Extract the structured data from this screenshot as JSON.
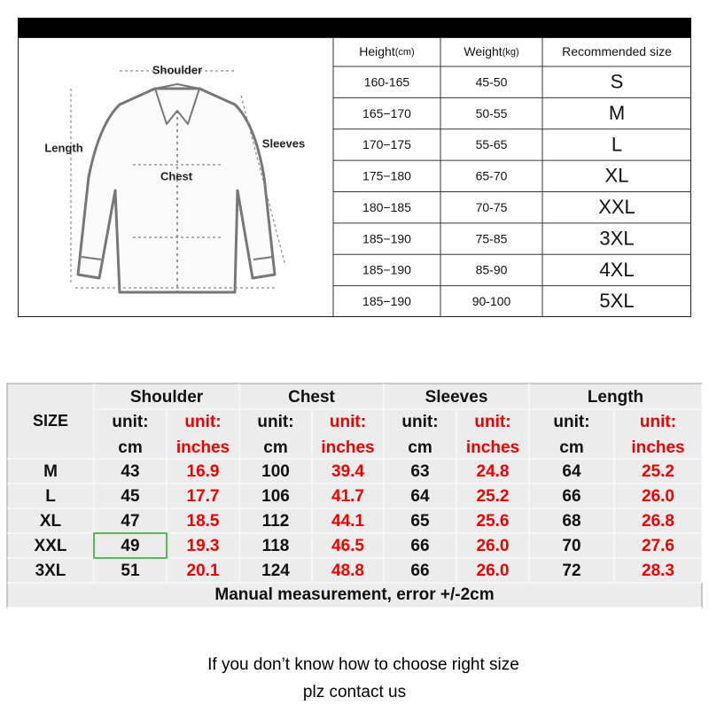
{
  "size_guide": {
    "diagram": {
      "labels": {
        "shoulder": "Shoulder",
        "length": "Length",
        "sleeves": "Sleeves",
        "chest": "Chest"
      }
    },
    "recommend_table": {
      "headers": [
        {
          "text": "Height",
          "unit": "(cm)"
        },
        {
          "text": "Weight",
          "unit": "(kg)"
        },
        {
          "text": "Recommended size"
        }
      ],
      "rows": [
        [
          "160-165",
          "45-50",
          "S"
        ],
        [
          "165−170",
          "50-55",
          "M"
        ],
        [
          "170−175",
          "55-65",
          "L"
        ],
        [
          "175−180",
          "65-70",
          "XL"
        ],
        [
          "180−185",
          "70-75",
          "XXL"
        ],
        [
          "185−190",
          "75-85",
          "3XL"
        ],
        [
          "185−190",
          "85-90",
          "4XL"
        ],
        [
          "185−190",
          "90-100",
          "5XL"
        ]
      ]
    },
    "measure_table": {
      "size_header": "SIZE",
      "groups": [
        "Shoulder",
        "Chest",
        "Sleeves",
        "Length"
      ],
      "unit_prefix": "unit:",
      "units": [
        "cm",
        "inches"
      ],
      "rows": [
        [
          "M",
          "43",
          "16.9",
          "100",
          "39.4",
          "63",
          "24.8",
          "64",
          "25.2"
        ],
        [
          "L",
          "45",
          "17.7",
          "106",
          "41.7",
          "64",
          "25.2",
          "66",
          "26.0"
        ],
        [
          "XL",
          "47",
          "18.5",
          "112",
          "44.1",
          "65",
          "25.6",
          "68",
          "26.8"
        ],
        [
          "XXL",
          "49",
          "19.3",
          "118",
          "46.5",
          "66",
          "26.0",
          "70",
          "27.6"
        ],
        [
          "3XL",
          "51",
          "20.1",
          "124",
          "48.8",
          "66",
          "26.0",
          "72",
          "28.3"
        ]
      ],
      "note": "Manual measurement, error +/-2cm"
    },
    "footer": [
      "If you don’t know how to choose right size",
      "plz contact us"
    ]
  }
}
